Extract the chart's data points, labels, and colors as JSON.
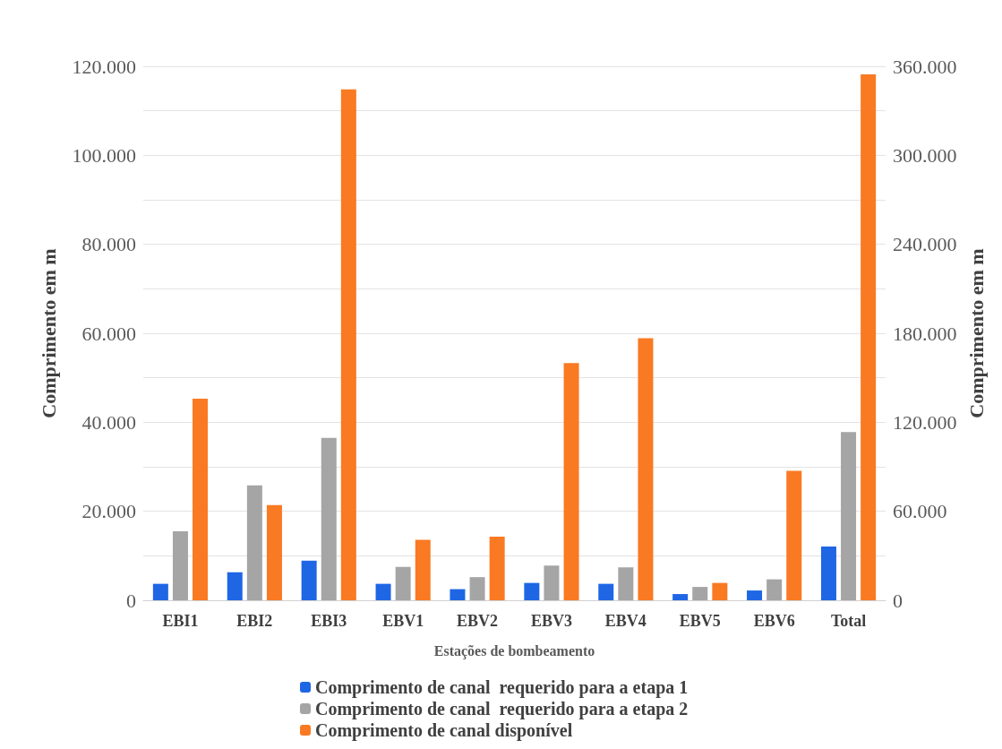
{
  "chart_data": {
    "type": "bar",
    "xlabel": "Estações de bombeamento",
    "ylabel": "Comprimento em m",
    "y2label": "Comprimento em m",
    "categories": [
      "EBI1",
      "EBI2",
      "EBI3",
      "EBV1",
      "EBV2",
      "EBV3",
      "EBV4",
      "EBV5",
      "EBV6",
      "Total"
    ],
    "series": [
      {
        "name": "Comprimento de canal  requerido para a etapa 1",
        "color": "#1f66e5",
        "values": [
          3700,
          6300,
          8900,
          3700,
          2500,
          3900,
          3700,
          1400,
          2200,
          null
        ]
      },
      {
        "name": "Comprimento de canal  requerido para a etapa 2",
        "color": "#a5a5a5",
        "values": [
          15500,
          25800,
          36500,
          7500,
          5200,
          7800,
          7400,
          3000,
          4700,
          null
        ]
      },
      {
        "name": "Comprimento de canal disponível",
        "color": "#f97a22",
        "values": [
          45300,
          21400,
          114800,
          13600,
          14300,
          53300,
          58900,
          3900,
          29100,
          null
        ]
      },
      {
        "color": "#1f66e5",
        "axis": "y2",
        "values": [
          null,
          null,
          null,
          null,
          null,
          null,
          null,
          null,
          null,
          36300
        ]
      },
      {
        "color": "#a5a5a5",
        "axis": "y2",
        "values": [
          null,
          null,
          null,
          null,
          null,
          null,
          null,
          null,
          null,
          113400
        ]
      },
      {
        "color": "#f97a22",
        "axis": "y2",
        "values": [
          null,
          null,
          null,
          null,
          null,
          null,
          null,
          null,
          null,
          354600
        ]
      }
    ],
    "ylim": [
      0,
      120000
    ],
    "yticks": [
      {
        "value": 0,
        "label": "0"
      },
      {
        "value": 10000,
        "label": null
      },
      {
        "value": 20000,
        "label": "20.000"
      },
      {
        "value": 30000,
        "label": null
      },
      {
        "value": 40000,
        "label": "40.000"
      },
      {
        "value": 50000,
        "label": null
      },
      {
        "value": 60000,
        "label": "60.000"
      },
      {
        "value": 70000,
        "label": null
      },
      {
        "value": 80000,
        "label": "80.000"
      },
      {
        "value": 90000,
        "label": null
      },
      {
        "value": 100000,
        "label": "100.000"
      },
      {
        "value": 110000,
        "label": null
      },
      {
        "value": 120000,
        "label": "120.000"
      }
    ],
    "y2lim": [
      0,
      360000
    ],
    "y2ticks": [
      {
        "value": 0,
        "label": "0"
      },
      {
        "value": 60000,
        "label": "60.000"
      },
      {
        "value": 120000,
        "label": "120.000"
      },
      {
        "value": 180000,
        "label": "180.000"
      },
      {
        "value": 240000,
        "label": "240.000"
      },
      {
        "value": 300000,
        "label": "300.000"
      },
      {
        "value": 360000,
        "label": "360.000"
      }
    ],
    "grid": "y",
    "legend": "bottom"
  }
}
